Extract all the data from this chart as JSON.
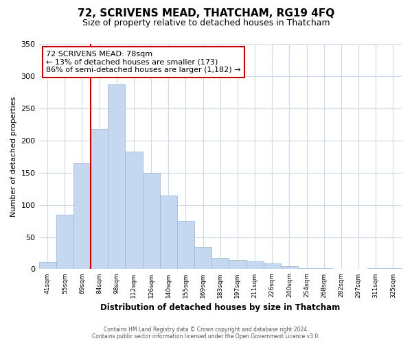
{
  "title": "72, SCRIVENS MEAD, THATCHAM, RG19 4FQ",
  "subtitle": "Size of property relative to detached houses in Thatcham",
  "xlabel": "Distribution of detached houses by size in Thatcham",
  "ylabel": "Number of detached properties",
  "bar_labels": [
    "41sqm",
    "55sqm",
    "69sqm",
    "84sqm",
    "98sqm",
    "112sqm",
    "126sqm",
    "140sqm",
    "155sqm",
    "169sqm",
    "183sqm",
    "197sqm",
    "211sqm",
    "226sqm",
    "240sqm",
    "254sqm",
    "268sqm",
    "282sqm",
    "297sqm",
    "311sqm",
    "325sqm"
  ],
  "bar_values": [
    11,
    85,
    165,
    218,
    287,
    183,
    150,
    115,
    75,
    35,
    18,
    14,
    12,
    9,
    5,
    2,
    1,
    0,
    0,
    2,
    1
  ],
  "bar_color": "#c5d8f0",
  "bar_edge_color": "#a0bcd8",
  "subject_line_color": "#cc0000",
  "annotation_title": "72 SCRIVENS MEAD: 78sqm",
  "annotation_line2": "← 13% of detached houses are smaller (173)",
  "annotation_line3": "86% of semi-detached houses are larger (1,182) →",
  "annotation_box_color": "#ffffff",
  "annotation_box_edge": "#cc0000",
  "ylim": [
    0,
    350
  ],
  "yticks": [
    0,
    50,
    100,
    150,
    200,
    250,
    300,
    350
  ],
  "footer_line1": "Contains HM Land Registry data © Crown copyright and database right 2024.",
  "footer_line2": "Contains public sector information licensed under the Open Government Licence v3.0.",
  "bg_color": "#ffffff",
  "grid_color": "#ccdaeb"
}
